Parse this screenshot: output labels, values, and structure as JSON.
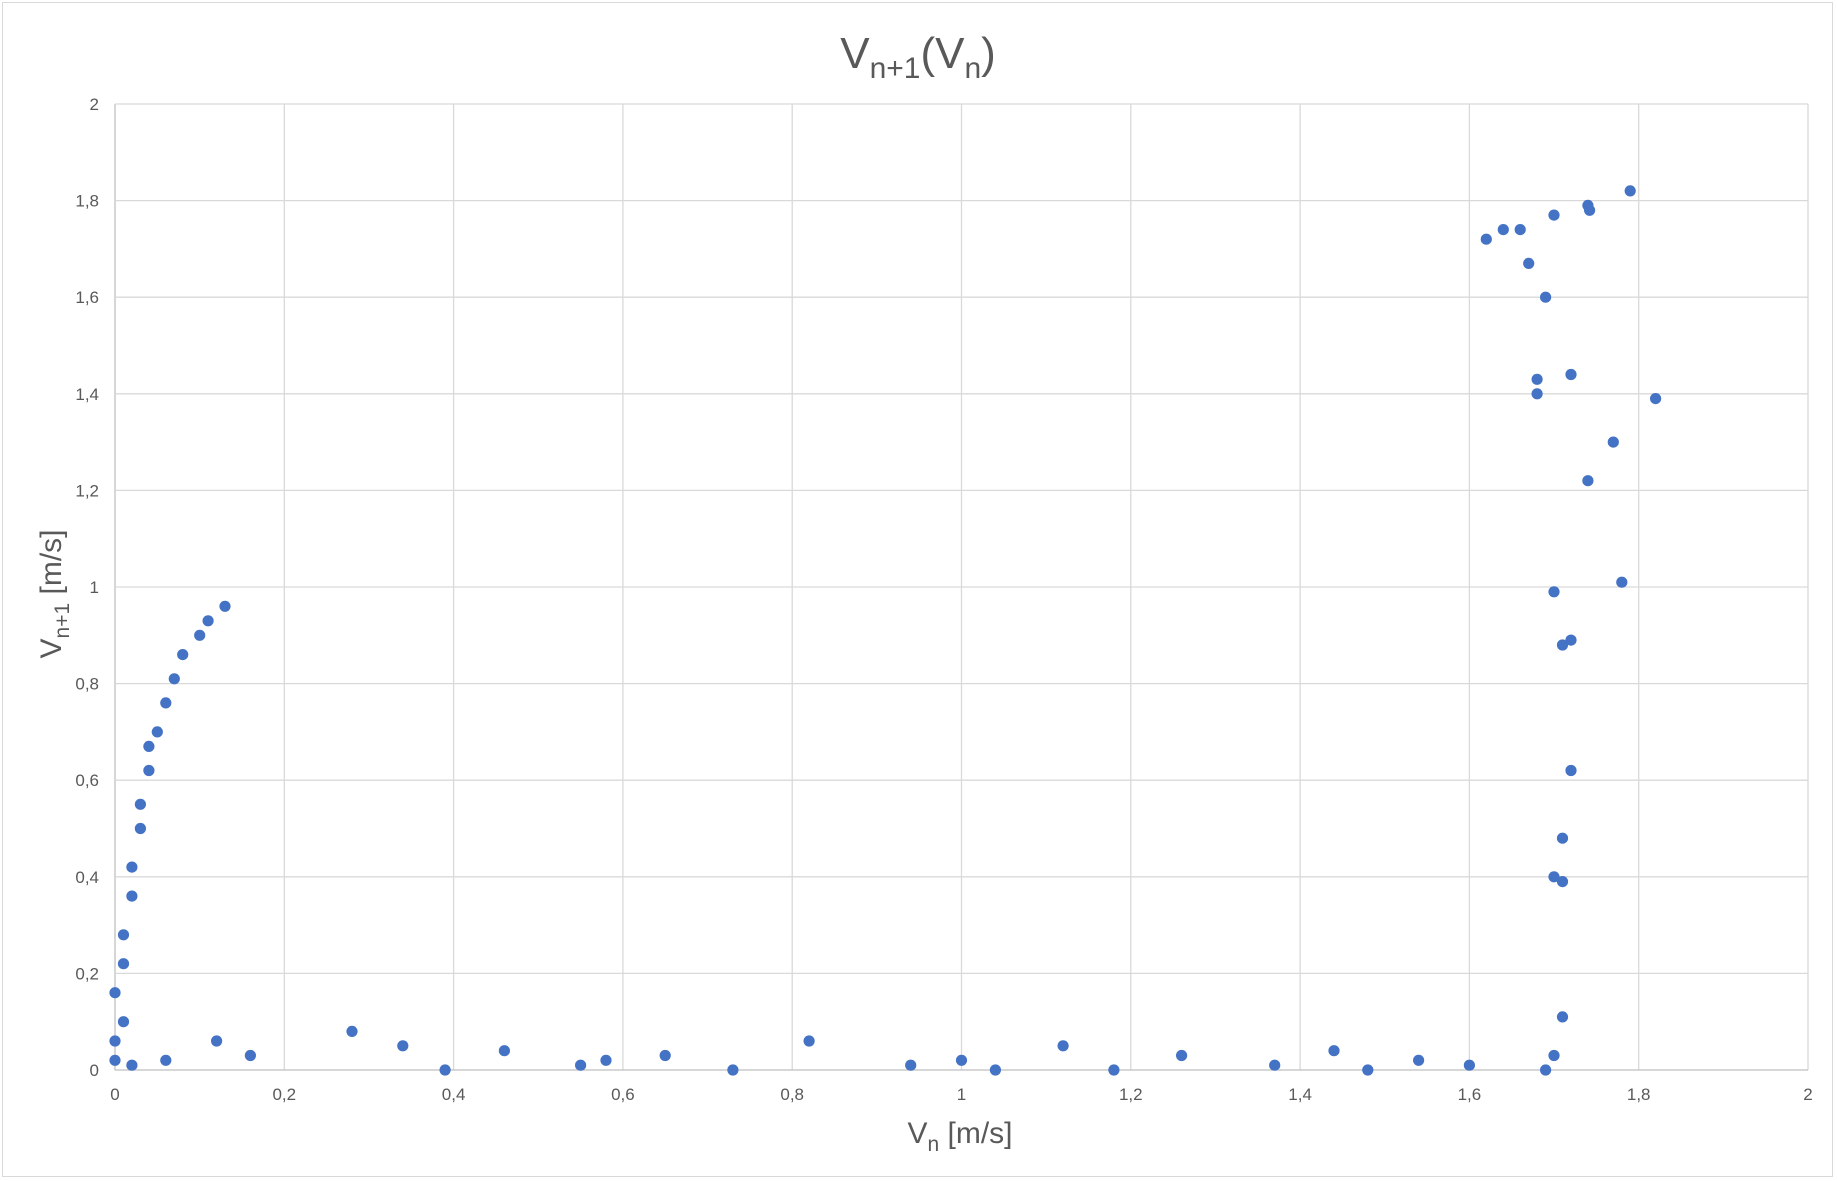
{
  "chart_data": {
    "type": "scatter",
    "title": {
      "base": "V",
      "sub1": "n+1",
      "open": "(V",
      "sub2": "n",
      "close": ")"
    },
    "xlabel": {
      "base": "V",
      "sub": "n",
      "unit": " [m/s]"
    },
    "ylabel": {
      "base": "V",
      "sub": "n+1",
      "unit": " [m/s]"
    },
    "xlim": [
      0,
      2
    ],
    "ylim": [
      0,
      2
    ],
    "x_ticks": [
      "0",
      "0,2",
      "0,4",
      "0,6",
      "0,8",
      "1",
      "1,2",
      "1,4",
      "1,6",
      "1,8",
      "2"
    ],
    "y_ticks": [
      "0",
      "0,2",
      "0,4",
      "0,6",
      "0,8",
      "1",
      "1,2",
      "1,4",
      "1,6",
      "1,8",
      "2"
    ],
    "grid": true,
    "legend": "none",
    "marker_color": "#4472c4",
    "series": [
      {
        "points": [
          [
            1.79,
            1.82
          ],
          [
            1.74,
            1.79
          ],
          [
            1.742,
            1.78
          ],
          [
            1.7,
            1.77
          ],
          [
            1.66,
            1.74
          ],
          [
            1.64,
            1.74
          ],
          [
            1.62,
            1.72
          ],
          [
            1.82,
            1.39
          ],
          [
            1.77,
            1.3
          ],
          [
            1.74,
            1.22
          ],
          [
            1.78,
            1.01
          ],
          [
            1.7,
            0.99
          ],
          [
            1.72,
            0.62
          ],
          [
            1.71,
            0.48
          ],
          [
            1.72,
            0.89
          ],
          [
            1.71,
            0.88
          ],
          [
            1.71,
            0.39
          ],
          [
            1.7,
            0.4
          ],
          [
            1.71,
            0.11
          ],
          [
            1.7,
            0.03
          ],
          [
            1.69,
            0.0
          ],
          [
            1.72,
            1.44
          ],
          [
            1.69,
            1.6
          ],
          [
            1.67,
            1.67
          ],
          [
            1.68,
            1.4
          ],
          [
            1.68,
            1.43
          ],
          [
            0.0,
            0.02
          ],
          [
            0.0,
            0.06
          ],
          [
            0.01,
            0.1
          ],
          [
            0.0,
            0.16
          ],
          [
            0.01,
            0.22
          ],
          [
            0.01,
            0.28
          ],
          [
            0.02,
            0.36
          ],
          [
            0.02,
            0.42
          ],
          [
            0.03,
            0.5
          ],
          [
            0.03,
            0.55
          ],
          [
            0.04,
            0.62
          ],
          [
            0.04,
            0.67
          ],
          [
            0.05,
            0.7
          ],
          [
            0.06,
            0.76
          ],
          [
            0.07,
            0.81
          ],
          [
            0.08,
            0.86
          ],
          [
            0.1,
            0.9
          ],
          [
            0.11,
            0.93
          ],
          [
            0.13,
            0.96
          ],
          [
            0.39,
            0.0
          ],
          [
            0.55,
            0.01
          ],
          [
            0.73,
            0.0
          ],
          [
            0.94,
            0.01
          ],
          [
            1.04,
            0.0
          ],
          [
            1.18,
            0.0
          ],
          [
            1.37,
            0.01
          ],
          [
            1.48,
            0.0
          ],
          [
            1.6,
            0.01
          ],
          [
            0.02,
            0.01
          ],
          [
            0.06,
            0.02
          ],
          [
            0.12,
            0.06
          ],
          [
            0.16,
            0.03
          ],
          [
            0.28,
            0.08
          ],
          [
            0.34,
            0.05
          ],
          [
            0.46,
            0.04
          ],
          [
            0.58,
            0.02
          ],
          [
            0.65,
            0.03
          ],
          [
            0.82,
            0.06
          ],
          [
            1.0,
            0.02
          ],
          [
            1.12,
            0.05
          ],
          [
            1.26,
            0.03
          ],
          [
            1.44,
            0.04
          ],
          [
            1.54,
            0.02
          ]
        ]
      }
    ]
  }
}
